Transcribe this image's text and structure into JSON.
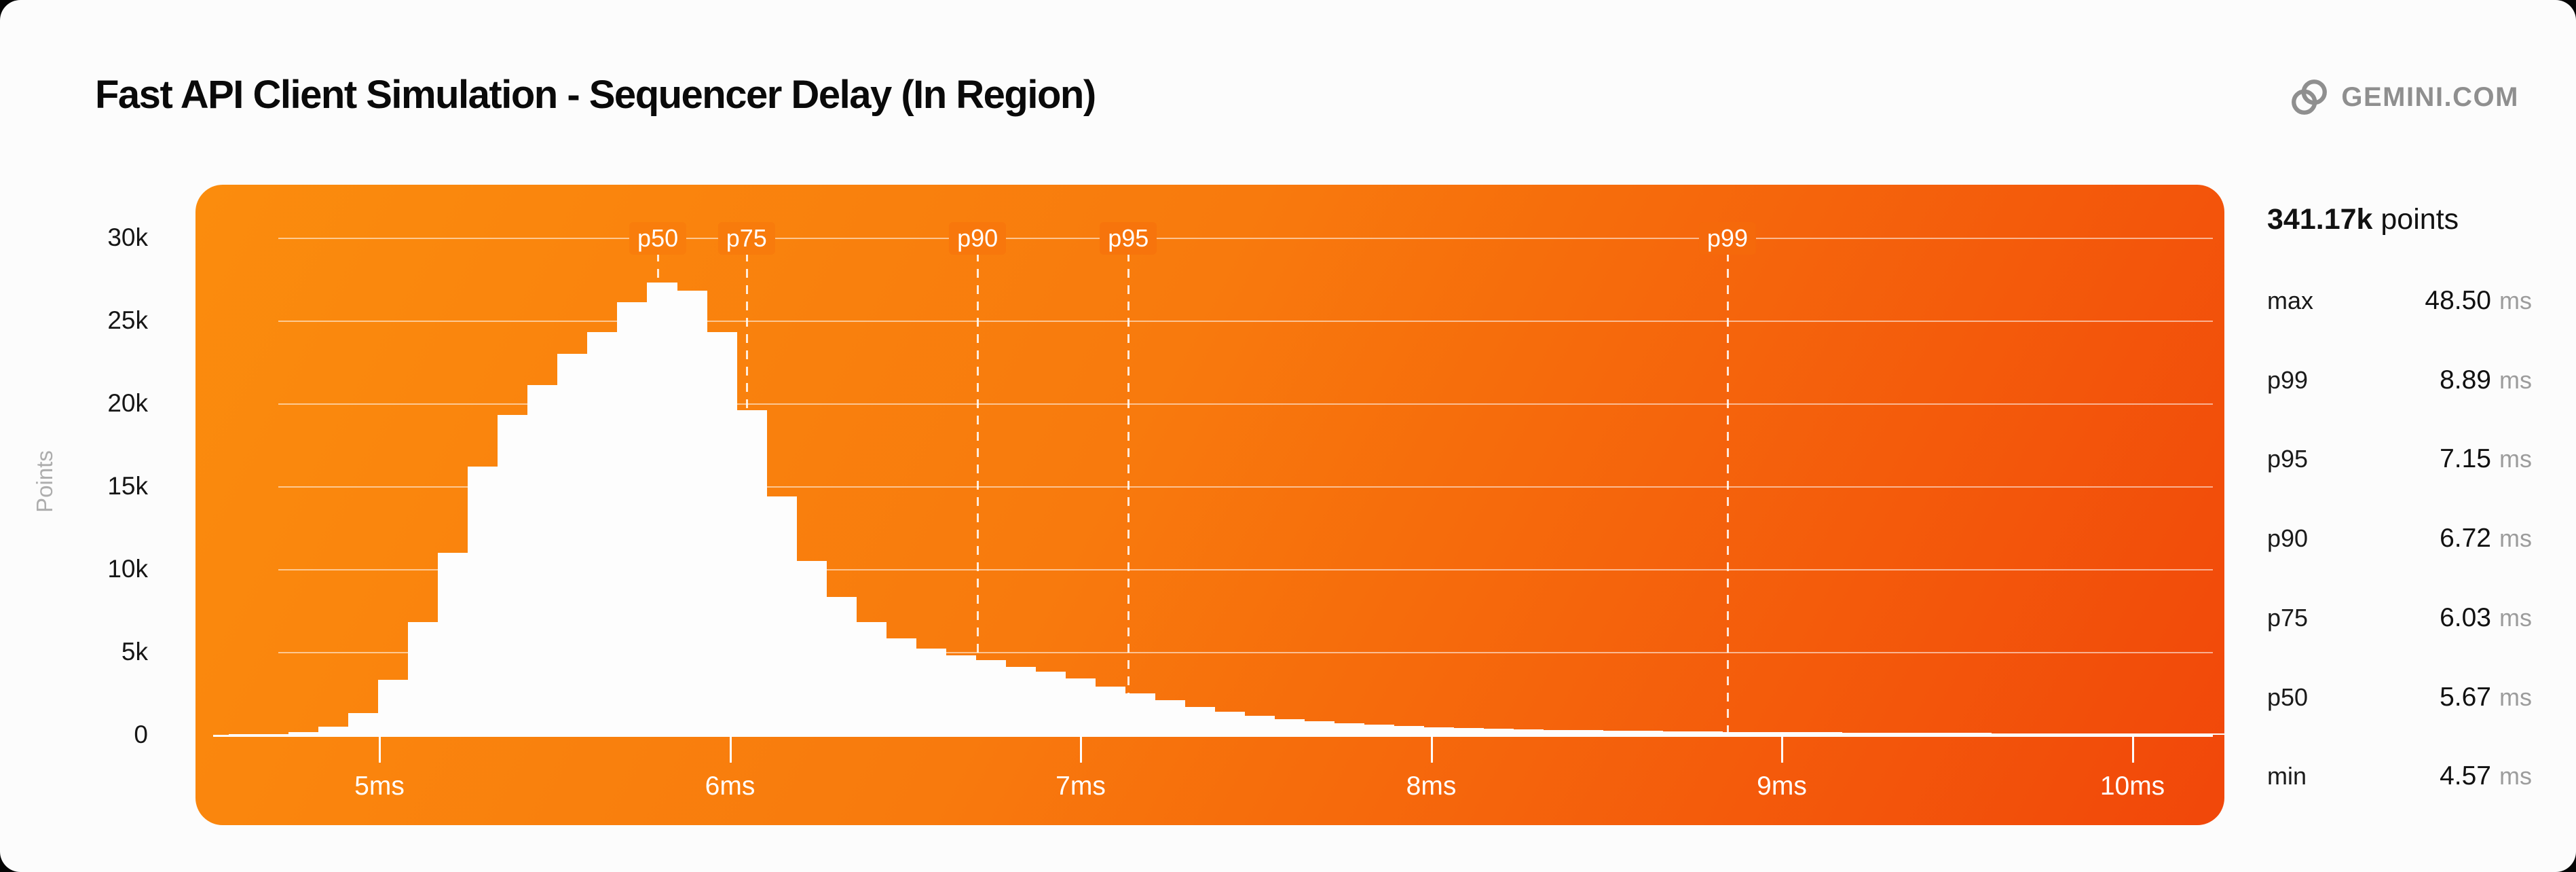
{
  "header": {
    "title": "Fast API Client Simulation - Sequencer Delay (In Region)",
    "brand": {
      "text": "GEMINI.COM",
      "icon": "gemini-logo-icon",
      "color": "#8F8F8F"
    }
  },
  "colors": {
    "page_background": "#050505",
    "card_background": "#FCFCFC",
    "panel_gradient_start": "#FB8C0D",
    "panel_gradient_end": "#F1470A",
    "bar_color": "#FDFDFD",
    "gridline_color": "rgba(255,255,255,0.55)",
    "axis_text_dark": "#161616",
    "axis_text_light": "#FFFFFF",
    "muted_text": "#9C9C9C"
  },
  "chart_data": {
    "type": "bar",
    "subtype": "histogram",
    "title": "Fast API Client Simulation - Sequencer Delay (In Region)",
    "xlabel": "",
    "ylabel": "Points",
    "x_unit": "ms",
    "grid": true,
    "bin_start_ms": 4.57,
    "bin_width_ms": 0.0852,
    "counts": [
      10,
      40,
      150,
      500,
      1300,
      3300,
      6800,
      11000,
      16200,
      19300,
      21100,
      23000,
      24300,
      26100,
      27300,
      26800,
      24300,
      19600,
      14400,
      10500,
      8300,
      6800,
      5800,
      5200,
      4800,
      4500,
      4100,
      3800,
      3400,
      2900,
      2500,
      2100,
      1700,
      1400,
      1150,
      950,
      800,
      700,
      600,
      520,
      460,
      410,
      370,
      330,
      300,
      270,
      250,
      230,
      210,
      200,
      180,
      170,
      160,
      150,
      140,
      130,
      120,
      110,
      110,
      100,
      100,
      90,
      90,
      80,
      80,
      70,
      70
    ],
    "x_axis": {
      "ticks_ms": [
        5,
        6,
        7,
        8,
        9,
        10
      ],
      "tick_labels": [
        "5ms",
        "6ms",
        "7ms",
        "8ms",
        "9ms",
        "10ms"
      ],
      "range_ms": [
        4.47,
        10.28
      ]
    },
    "y_axis": {
      "tick_labels": [
        "30k",
        "25k",
        "20k",
        "15k",
        "10k",
        "5k",
        "0"
      ],
      "tick_values": [
        30000,
        25000,
        20000,
        15000,
        10000,
        5000,
        0
      ],
      "range": [
        0,
        33200
      ]
    },
    "markers": [
      {
        "label": "p50",
        "stat_ms": 5.67,
        "x_ms": 5.794
      },
      {
        "label": "p75",
        "stat_ms": 6.03,
        "x_ms": 6.047
      },
      {
        "label": "p90",
        "stat_ms": 6.72,
        "x_ms": 6.706
      },
      {
        "label": "p95",
        "stat_ms": 7.15,
        "x_ms": 7.136
      },
      {
        "label": "p99",
        "stat_ms": 8.89,
        "x_ms": 8.845
      }
    ]
  },
  "stats": {
    "total_value": "341.17k",
    "total_label": "points",
    "rows": [
      {
        "label": "max",
        "value": "48.50",
        "unit": "ms"
      },
      {
        "label": "p99",
        "value": "8.89",
        "unit": "ms"
      },
      {
        "label": "p95",
        "value": "7.15",
        "unit": "ms"
      },
      {
        "label": "p90",
        "value": "6.72",
        "unit": "ms"
      },
      {
        "label": "p75",
        "value": "6.03",
        "unit": "ms"
      },
      {
        "label": "p50",
        "value": "5.67",
        "unit": "ms"
      },
      {
        "label": "min",
        "value": "4.57",
        "unit": "ms"
      }
    ]
  }
}
